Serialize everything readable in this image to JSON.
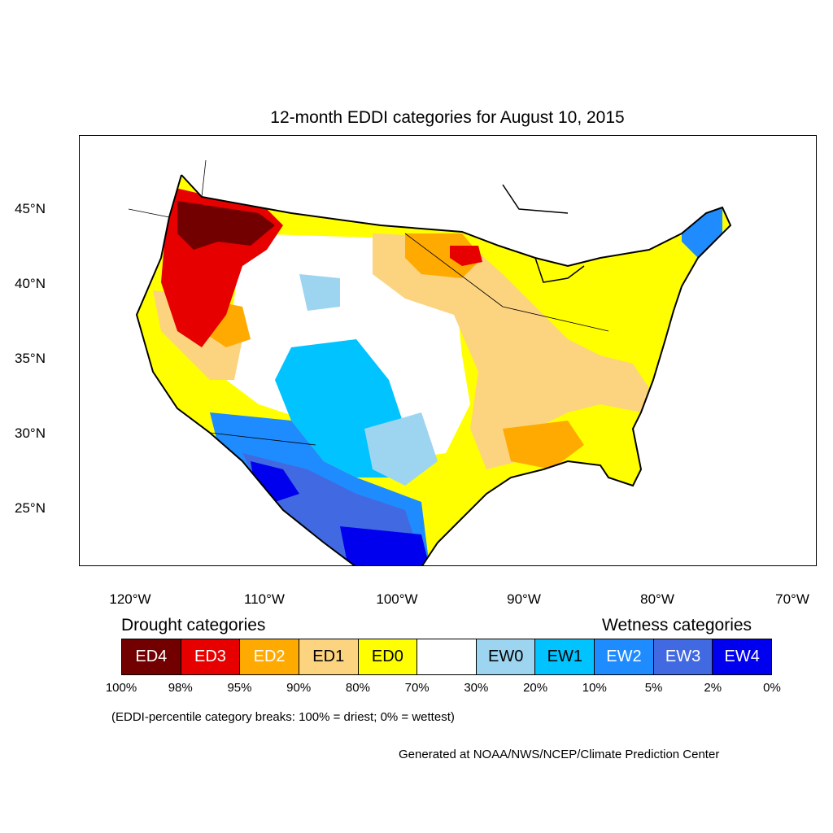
{
  "title": "12-month EDDI categories for August 10, 2015",
  "lat_labels": [
    "45°N",
    "40°N",
    "35°N",
    "30°N",
    "25°N"
  ],
  "lon_labels": [
    "120°W",
    "110°W",
    "100°W",
    "90°W",
    "80°W",
    "70°W"
  ],
  "legend": {
    "drought_heading": "Drought categories",
    "wetness_heading": "Wetness categories",
    "categories": [
      {
        "label": "ED4",
        "color": "#730000",
        "text_color": "#ffffff"
      },
      {
        "label": "ED3",
        "color": "#e60000",
        "text_color": "#ffffff"
      },
      {
        "label": "ED2",
        "color": "#ffaa00",
        "text_color": "#ffffff"
      },
      {
        "label": "ED1",
        "color": "#fcd37f",
        "text_color": "#000000"
      },
      {
        "label": "ED0",
        "color": "#ffff00",
        "text_color": "#000000"
      },
      {
        "label": "",
        "color": "#ffffff",
        "text_color": "#000000"
      },
      {
        "label": "EW0",
        "color": "#9dd4f0",
        "text_color": "#000000"
      },
      {
        "label": "EW1",
        "color": "#00c3ff",
        "text_color": "#000000"
      },
      {
        "label": "EW2",
        "color": "#1e8cff",
        "text_color": "#ffffff"
      },
      {
        "label": "EW3",
        "color": "#4169e1",
        "text_color": "#ffffff"
      },
      {
        "label": "EW4",
        "color": "#0000ee",
        "text_color": "#ffffff"
      }
    ],
    "breaks": [
      "100%",
      "98%",
      "95%",
      "90%",
      "80%",
      "70%",
      "30%",
      "20%",
      "10%",
      "5%",
      "2%",
      "0%"
    ]
  },
  "note": "(EDDI-percentile category breaks: 100% = driest; 0% = wettest)",
  "credit": "Generated at NOAA/NWS/NCEP/Climate Prediction Center"
}
